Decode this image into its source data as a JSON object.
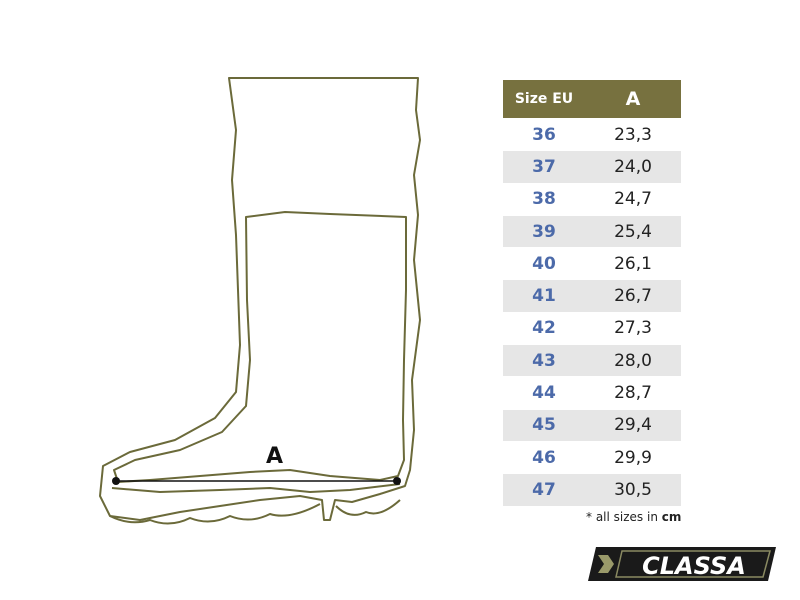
{
  "diagram": {
    "measure_label": "A",
    "outline_color": "#6b6a3a"
  },
  "table": {
    "header": {
      "size": "Size EU",
      "measure": "A"
    },
    "header_color": "#77713f",
    "size_color": "#4c6aa9",
    "rows": [
      {
        "size": "36",
        "a": "23,3"
      },
      {
        "size": "37",
        "a": "24,0"
      },
      {
        "size": "38",
        "a": "24,7"
      },
      {
        "size": "39",
        "a": "25,4"
      },
      {
        "size": "40",
        "a": "26,1"
      },
      {
        "size": "41",
        "a": "26,7"
      },
      {
        "size": "42",
        "a": "27,3"
      },
      {
        "size": "43",
        "a": "28,0"
      },
      {
        "size": "44",
        "a": "28,7"
      },
      {
        "size": "45",
        "a": "29,4"
      },
      {
        "size": "46",
        "a": "29,9"
      },
      {
        "size": "47",
        "a": "30,5"
      }
    ]
  },
  "note": {
    "prefix": "* all sizes in ",
    "unit": "cm"
  },
  "logo": {
    "text": "CLASSA"
  }
}
